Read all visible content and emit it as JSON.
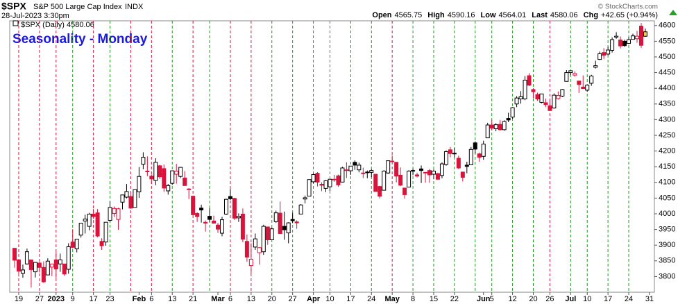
{
  "chart_data": {
    "type": "candlestick",
    "symbol": "$SPX",
    "name": "S&P 500 Large Cap Index",
    "exchange": "INDX",
    "timestamp": "28-Jul-2023 3:30pm",
    "header_labels": [
      "Open",
      "High",
      "Low",
      "Last",
      "Chg"
    ],
    "change": "+42.65 (+0.94%)",
    "legend": "$SPX (Daily)",
    "title": "Seasonality - Monday",
    "credit": "© StockCharts.com",
    "up_color": "#000000",
    "down_color": "#d9143c",
    "last_color": "#e6d34a",
    "ylim": [
      3750,
      4615
    ],
    "yticks": [
      3800,
      3850,
      3900,
      3950,
      4000,
      4050,
      4100,
      4150,
      4200,
      4250,
      4300,
      4350,
      4400,
      4450,
      4500,
      4550,
      4600
    ],
    "categories": [
      null,
      "19",
      null,
      null,
      null,
      null,
      "27",
      null,
      null,
      null,
      "2023",
      null,
      null,
      null,
      "9",
      null,
      null,
      null,
      null,
      "17",
      null,
      null,
      null,
      "23",
      null,
      null,
      null,
      null,
      null,
      null,
      "Feb",
      null,
      null,
      "6",
      null,
      null,
      null,
      null,
      "13",
      null,
      null,
      null,
      null,
      "21",
      null,
      null,
      null,
      null,
      null,
      "Mar",
      null,
      null,
      "6",
      null,
      null,
      null,
      null,
      "13",
      null,
      null,
      null,
      null,
      "20",
      null,
      null,
      null,
      null,
      "27",
      null,
      null,
      null,
      null,
      "Apr",
      null,
      null,
      null,
      "10",
      null,
      null,
      null,
      null,
      "17",
      null,
      null,
      null,
      null,
      "24",
      null,
      null,
      null,
      null,
      "May",
      null,
      null,
      null,
      null,
      "8",
      null,
      null,
      null,
      null,
      "15",
      null,
      null,
      null,
      null,
      "22",
      null,
      null,
      null,
      null,
      null,
      null,
      "Jun",
      null,
      "5",
      null,
      null,
      null,
      null,
      "12",
      null,
      null,
      null,
      null,
      "20",
      null,
      null,
      null,
      "26",
      null,
      null,
      null,
      null,
      "Jul",
      null,
      null,
      null,
      "10",
      null,
      null,
      null,
      null,
      "17",
      null,
      null,
      null,
      null,
      "24",
      null,
      null,
      null,
      null,
      "31"
    ],
    "open": [
      3890,
      3853,
      3810,
      3840,
      3853,
      3815,
      3843,
      3829,
      3805,
      3830,
      3853,
      3840,
      3840,
      3823,
      3910,
      3888,
      3932,
      3977,
      3960,
      3999,
      4003,
      3912,
      3910,
      3979,
      4001,
      3982,
      4037,
      4053,
      4055,
      4020,
      4070,
      4158,
      4136,
      4120,
      4106,
      4153,
      4144,
      4073,
      4097,
      4126,
      4119,
      4114,
      4077,
      4056,
      4001,
      4018,
      3973,
      3992,
      3977,
      3964,
      3938,
      3999,
      4055,
      4049,
      3987,
      3999,
      3912,
      3835,
      3894,
      3876,
      3879,
      3958,
      3917,
      3975,
      4002,
      3960,
      3939,
      3982,
      3974,
      3999,
      4047,
      4056,
      4102,
      4129,
      4094,
      4081,
      4086,
      4110,
      4121,
      4101,
      4140,
      4137,
      4164,
      4140,
      4130,
      4133,
      4132,
      4126,
      4087,
      4075,
      4130,
      4166,
      4164,
      4123,
      4082,
      4085,
      4136,
      4124,
      4143,
      4132,
      4138,
      4126,
      4128,
      4122,
      4157,
      4204,
      4191,
      4177,
      4133,
      4155,
      4156,
      4226,
      4191,
      4183,
      4242,
      4283,
      4271,
      4285,
      4268,
      4304,
      4308,
      4350,
      4366,
      4366,
      4440,
      4396,
      4380,
      4355,
      4354,
      4344,
      4337,
      4367,
      4375,
      4422,
      4450,
      4442,
      4423,
      4404,
      4394,
      4416,
      4467,
      4492,
      4514,
      4509,
      4521,
      4563,
      4554,
      4550,
      4543,
      4556,
      4558,
      4598,
      4565.75,
      null
    ],
    "high": [
      3890,
      3855,
      3838,
      3889,
      3853,
      3846,
      3846,
      3848,
      3858,
      3840,
      3878,
      3873,
      3840,
      3906,
      3951,
      3919,
      3970,
      3997,
      4003,
      4016,
      4015,
      3922,
      3973,
      4039,
      4023,
      4019,
      4061,
      4095,
      4063,
      4077,
      4149,
      4196,
      4183,
      4125,
      4177,
      4156,
      4157,
      4095,
      4138,
      4159,
      4149,
      4136,
      4082,
      4056,
      4005,
      4029,
      3979,
      4018,
      3994,
      3971,
      3990,
      4048,
      4079,
      4051,
      4001,
      4017,
      3934,
      3906,
      3937,
      3894,
      3965,
      3959,
      3956,
      4010,
      4039,
      4007,
      3973,
      4003,
      3979,
      4031,
      4058,
      4110,
      4128,
      4133,
      4100,
      4107,
      4110,
      4124,
      4125,
      4150,
      4164,
      4152,
      4170,
      4163,
      4147,
      4138,
      4142,
      4126,
      4089,
      4139,
      4170,
      4186,
      4165,
      4148,
      4083,
      4139,
      4144,
      4131,
      4154,
      4133,
      4143,
      4141,
      4131,
      4164,
      4202,
      4213,
      4210,
      4185,
      4133,
      4166,
      4213,
      4231,
      4195,
      4233,
      4290,
      4299,
      4289,
      4299,
      4298,
      4322,
      4340,
      4375,
      4391,
      4439,
      4448,
      4400,
      4386,
      4382,
      4367,
      4363,
      4384,
      4390,
      4398,
      4458,
      4457,
      4454,
      4423,
      4441,
      4412,
      4443,
      4488,
      4517,
      4528,
      4532,
      4562,
      4579,
      4565,
      4555,
      4563,
      4574,
      4583,
      4608,
      4590.16,
      null
    ],
    "low": [
      3828,
      3800,
      3796,
      3838,
      3765,
      3797,
      3813,
      3780,
      3805,
      3801,
      3795,
      3815,
      3802,
      3809,
      3890,
      3877,
      3924,
      3937,
      3947,
      3984,
      3925,
      3885,
      3898,
      3973,
      3990,
      3949,
      4014,
      4049,
      4016,
      4020,
      4051,
      4142,
      4120,
      4095,
      4091,
      4111,
      4070,
      4061,
      4092,
      4096,
      4114,
      4089,
      4047,
      3996,
      3974,
      3972,
      3943,
      3973,
      3968,
      3939,
      3928,
      3996,
      4044,
      3980,
      3974,
      3909,
      3847,
      3809,
      3885,
      3838,
      3869,
      3901,
      3916,
      3971,
      3936,
      3917,
      3906,
      3970,
      3952,
      3999,
      4033,
      4056,
      4097,
      4087,
      4072,
      4069,
      4073,
      4102,
      4086,
      4100,
      4114,
      4124,
      4140,
      4132,
      4114,
      4113,
      4117,
      4071,
      4049,
      4075,
      4127,
      4164,
      4100,
      4088,
      4048,
      4085,
      4123,
      4116,
      4098,
      4099,
      4099,
      4110,
      4109,
      4113,
      4153,
      4180,
      4180,
      4142,
      4103,
      4129,
      4155,
      4192,
      4166,
      4172,
      4242,
      4266,
      4263,
      4265,
      4265,
      4292,
      4303,
      4340,
      4351,
      4362,
      4407,
      4368,
      4360,
      4352,
      4340,
      4328,
      4335,
      4364,
      4372,
      4422,
      4442,
      4437,
      4385,
      4398,
      4389,
      4408,
      4463,
      4490,
      4494,
      4505,
      4514,
      4558,
      4527,
      4532,
      4541,
      4556,
      4545,
      4529,
      4564.01,
      null
    ],
    "close": [
      3852,
      3817,
      3821,
      3879,
      3822,
      3845,
      3829,
      3783,
      3849,
      3840,
      3824,
      3853,
      3808,
      3895,
      3893,
      3919,
      3970,
      3983,
      3999,
      3991,
      3929,
      3898,
      3973,
      4020,
      4017,
      4016,
      4060,
      4071,
      4018,
      4077,
      4119,
      4180,
      4136,
      4111,
      4164,
      4118,
      4082,
      4090,
      4137,
      4136,
      4148,
      4090,
      4079,
      3997,
      3991,
      4012,
      3970,
      3982,
      3970,
      3951,
      3981,
      4046,
      4048,
      3986,
      3992,
      3919,
      3862,
      3855,
      3920,
      3892,
      3960,
      3917,
      3952,
      4003,
      3937,
      3949,
      3971,
      3978,
      3971,
      4028,
      4051,
      4109,
      4125,
      4101,
      4091,
      4105,
      4110,
      4109,
      4092,
      4146,
      4138,
      4152,
      4155,
      4155,
      4130,
      4133,
      4138,
      4071,
      4056,
      4136,
      4169,
      4168,
      4120,
      4091,
      4061,
      4136,
      4138,
      4120,
      4138,
      4131,
      4124,
      4136,
      4110,
      4159,
      4198,
      4192,
      4193,
      4146,
      4116,
      4151,
      4205,
      4206,
      4180,
      4222,
      4283,
      4273,
      4284,
      4268,
      4294,
      4299,
      4338,
      4369,
      4373,
      4426,
      4410,
      4389,
      4366,
      4382,
      4348,
      4329,
      4378,
      4377,
      4396,
      4450,
      4456,
      4447,
      4412,
      4399,
      4410,
      4439,
      4472,
      4510,
      4505,
      4522,
      4555,
      4566,
      4535,
      4536,
      4555,
      4567,
      4566,
      4537,
      4580.06,
      null
    ],
    "monday_lines": [
      {
        "index": 1,
        "color": "#d9143c"
      },
      {
        "index": 6,
        "color": "#d9143c"
      },
      {
        "index": 10,
        "color": "#d9143c"
      },
      {
        "index": 14,
        "color": "#1f9a1f"
      },
      {
        "index": 19,
        "color": "#d9143c"
      },
      {
        "index": 23,
        "color": "#1f9a1f"
      },
      {
        "index": 28,
        "color": "#d9143c"
      },
      {
        "index": 33,
        "color": "#d9143c"
      },
      {
        "index": 38,
        "color": "#1f9a1f"
      },
      {
        "index": 43,
        "color": "#d9143c"
      },
      {
        "index": 47,
        "color": "#1f9a1f"
      },
      {
        "index": 52,
        "color": "#d9143c"
      },
      {
        "index": 57,
        "color": "#d9143c"
      },
      {
        "index": 62,
        "color": "#1f9a1f"
      },
      {
        "index": 67,
        "color": "#1f9a1f"
      },
      {
        "index": 72,
        "color": "#1f9a1f"
      },
      {
        "index": 76,
        "color": "#1f9a1f"
      },
      {
        "index": 81,
        "color": "#1f9a1f"
      },
      {
        "index": 86,
        "color": "#1f9a1f"
      },
      {
        "index": 91,
        "color": "#d9143c"
      },
      {
        "index": 96,
        "color": "#1f9a1f"
      },
      {
        "index": 101,
        "color": "#1f9a1f"
      },
      {
        "index": 106,
        "color": "#1f9a1f"
      },
      {
        "index": 111,
        "color": "#1f9a1f"
      },
      {
        "index": 115,
        "color": "#1f9a1f"
      },
      {
        "index": 120,
        "color": "#1f9a1f"
      },
      {
        "index": 125,
        "color": "#1f9a1f"
      },
      {
        "index": 129,
        "color": "#d9143c"
      },
      {
        "index": 134,
        "color": "#1f9a1f"
      },
      {
        "index": 138,
        "color": "#1f9a1f"
      },
      {
        "index": 143,
        "color": "#1f9a1f"
      },
      {
        "index": 148,
        "color": "#1f9a1f"
      }
    ]
  }
}
